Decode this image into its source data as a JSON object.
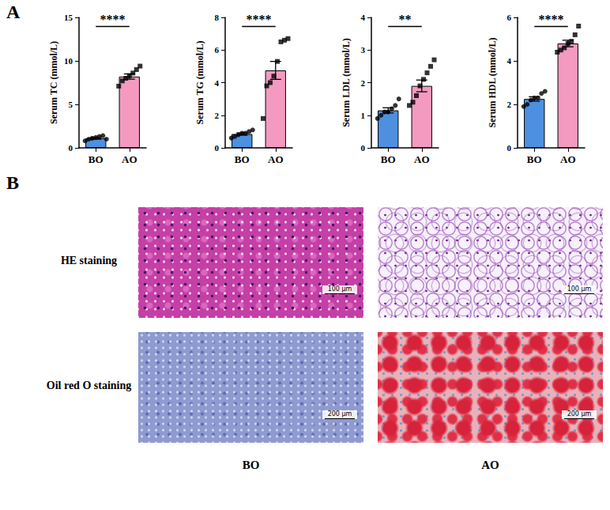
{
  "panel_labels": [
    "A",
    "B"
  ],
  "chart_data": [
    {
      "type": "bar",
      "y_label": "Serum TC (mmol/L)",
      "categories": [
        "BO",
        "AO"
      ],
      "values": [
        1.1,
        8.2
      ],
      "errors": [
        0.1,
        0.3
      ],
      "colors": [
        "#4d90e0",
        "#f49ac1"
      ],
      "points": [
        {
          "marker": "circle",
          "values": [
            0.8,
            1.0,
            1.1,
            1.2,
            1.3,
            1.4,
            1.0
          ]
        },
        {
          "marker": "square",
          "values": [
            7.1,
            7.7,
            8.0,
            8.3,
            8.6,
            9.0,
            9.4
          ]
        }
      ],
      "ylim": [
        0,
        15
      ],
      "yticks": [
        0,
        5,
        10,
        15
      ],
      "significance": "****"
    },
    {
      "type": "bar",
      "y_label": "Serum TG (mmol/L)",
      "categories": [
        "BO",
        "AO"
      ],
      "values": [
        0.85,
        4.75
      ],
      "errors": [
        0.07,
        0.55
      ],
      "colors": [
        "#4d90e0",
        "#f49ac1"
      ],
      "points": [
        {
          "marker": "circle",
          "values": [
            0.6,
            0.7,
            0.8,
            0.9,
            0.9,
            1.0,
            1.1
          ]
        },
        {
          "marker": "square",
          "values": [
            1.8,
            3.8,
            4.0,
            4.4,
            5.3,
            6.5,
            6.6,
            6.7
          ]
        }
      ],
      "ylim": [
        0,
        8
      ],
      "yticks": [
        0,
        2,
        4,
        6,
        8
      ],
      "significance": "****"
    },
    {
      "type": "bar",
      "y_label": "Serum LDL (mmol/L)",
      "categories": [
        "BO",
        "AO"
      ],
      "values": [
        1.15,
        1.9
      ],
      "errors": [
        0.08,
        0.18
      ],
      "colors": [
        "#4d90e0",
        "#f49ac1"
      ],
      "points": [
        {
          "marker": "circle",
          "values": [
            0.9,
            1.0,
            1.1,
            1.1,
            1.2,
            1.3,
            1.5
          ]
        },
        {
          "marker": "square",
          "values": [
            1.3,
            1.4,
            1.6,
            1.9,
            2.1,
            2.3,
            2.5,
            2.7
          ]
        }
      ],
      "ylim": [
        0,
        4
      ],
      "yticks": [
        0,
        1,
        2,
        3,
        4
      ],
      "significance": "**"
    },
    {
      "type": "bar",
      "y_label": "Serum HDL (mmol/L)",
      "categories": [
        "BO",
        "AO"
      ],
      "values": [
        2.25,
        4.8
      ],
      "errors": [
        0.1,
        0.15
      ],
      "colors": [
        "#4d90e0",
        "#f49ac1"
      ],
      "points": [
        {
          "marker": "circle",
          "values": [
            1.9,
            2.0,
            2.2,
            2.3,
            2.3,
            2.5,
            2.6
          ]
        },
        {
          "marker": "square",
          "values": [
            4.4,
            4.5,
            4.6,
            4.8,
            4.9,
            5.2,
            5.6
          ]
        }
      ],
      "ylim": [
        0,
        6
      ],
      "yticks": [
        0,
        2,
        4,
        6
      ],
      "significance": "****"
    }
  ],
  "images": {
    "rows": [
      {
        "label": "HE staining",
        "scale_bar": "100 μm"
      },
      {
        "label": "Oil red O staining",
        "scale_bar": "200 μm"
      }
    ],
    "columns": [
      "BO",
      "AO"
    ]
  }
}
